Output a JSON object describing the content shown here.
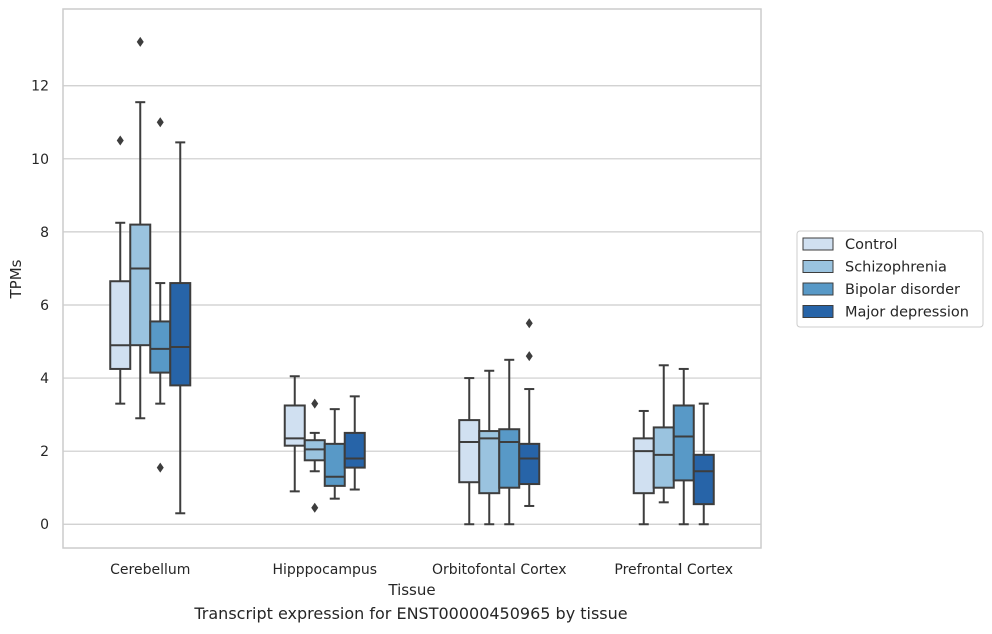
{
  "caption": "Transcript expression for ENST00000450965 by tissue",
  "chart_data": {
    "type": "box",
    "xlabel": "Tissue",
    "ylabel": "TPMs",
    "ylim": [
      -0.65,
      14.1
    ],
    "yticks": [
      0,
      2,
      4,
      6,
      8,
      10,
      12
    ],
    "grid": "horizontal",
    "legend_position": "right",
    "categories": [
      "Cerebellum",
      "Hipppocampus",
      "Orbitofontal Cortex",
      "Prefrontal Cortex"
    ],
    "series": [
      {
        "name": "Control",
        "color": "#d0e0f1",
        "boxes": [
          {
            "q1": 4.25,
            "median": 4.9,
            "q3": 6.65,
            "whisker_low": 3.3,
            "whisker_high": 8.25,
            "outliers": [
              10.5
            ]
          },
          {
            "q1": 2.15,
            "median": 2.35,
            "q3": 3.25,
            "whisker_low": 0.9,
            "whisker_high": 4.05,
            "outliers": []
          },
          {
            "q1": 1.15,
            "median": 2.25,
            "q3": 2.85,
            "whisker_low": 0.0,
            "whisker_high": 4.0,
            "outliers": []
          },
          {
            "q1": 0.85,
            "median": 2.0,
            "q3": 2.35,
            "whisker_low": 0.0,
            "whisker_high": 3.1,
            "outliers": []
          }
        ]
      },
      {
        "name": "Schizophrenia",
        "color": "#9ac3df",
        "boxes": [
          {
            "q1": 4.9,
            "median": 7.0,
            "q3": 8.2,
            "whisker_low": 2.9,
            "whisker_high": 11.55,
            "outliers": [
              13.2
            ]
          },
          {
            "q1": 1.75,
            "median": 2.05,
            "q3": 2.3,
            "whisker_low": 1.45,
            "whisker_high": 2.5,
            "outliers": [
              3.3,
              0.45
            ]
          },
          {
            "q1": 0.85,
            "median": 2.35,
            "q3": 2.55,
            "whisker_low": 0.0,
            "whisker_high": 4.2,
            "outliers": []
          },
          {
            "q1": 1.0,
            "median": 1.9,
            "q3": 2.65,
            "whisker_low": 0.6,
            "whisker_high": 4.35,
            "outliers": []
          }
        ]
      },
      {
        "name": "Bipolar disorder",
        "color": "#5899c7",
        "boxes": [
          {
            "q1": 4.15,
            "median": 4.8,
            "q3": 5.55,
            "whisker_low": 3.3,
            "whisker_high": 6.6,
            "outliers": [
              11.0,
              1.55
            ]
          },
          {
            "q1": 1.05,
            "median": 1.3,
            "q3": 2.2,
            "whisker_low": 0.7,
            "whisker_high": 3.15,
            "outliers": []
          },
          {
            "q1": 1.0,
            "median": 2.25,
            "q3": 2.6,
            "whisker_low": 0.0,
            "whisker_high": 4.5,
            "outliers": []
          },
          {
            "q1": 1.2,
            "median": 2.4,
            "q3": 3.25,
            "whisker_low": 0.0,
            "whisker_high": 4.25,
            "outliers": []
          }
        ]
      },
      {
        "name": "Major depression",
        "color": "#2764a8",
        "boxes": [
          {
            "q1": 3.8,
            "median": 4.85,
            "q3": 6.6,
            "whisker_low": 0.3,
            "whisker_high": 10.45,
            "outliers": []
          },
          {
            "q1": 1.55,
            "median": 1.8,
            "q3": 2.5,
            "whisker_low": 0.95,
            "whisker_high": 3.5,
            "outliers": []
          },
          {
            "q1": 1.1,
            "median": 1.8,
            "q3": 2.2,
            "whisker_low": 0.5,
            "whisker_high": 3.7,
            "outliers": [
              5.5,
              4.6
            ]
          },
          {
            "q1": 0.55,
            "median": 1.45,
            "q3": 1.9,
            "whisker_low": 0.0,
            "whisker_high": 3.3,
            "outliers": []
          }
        ]
      }
    ]
  }
}
